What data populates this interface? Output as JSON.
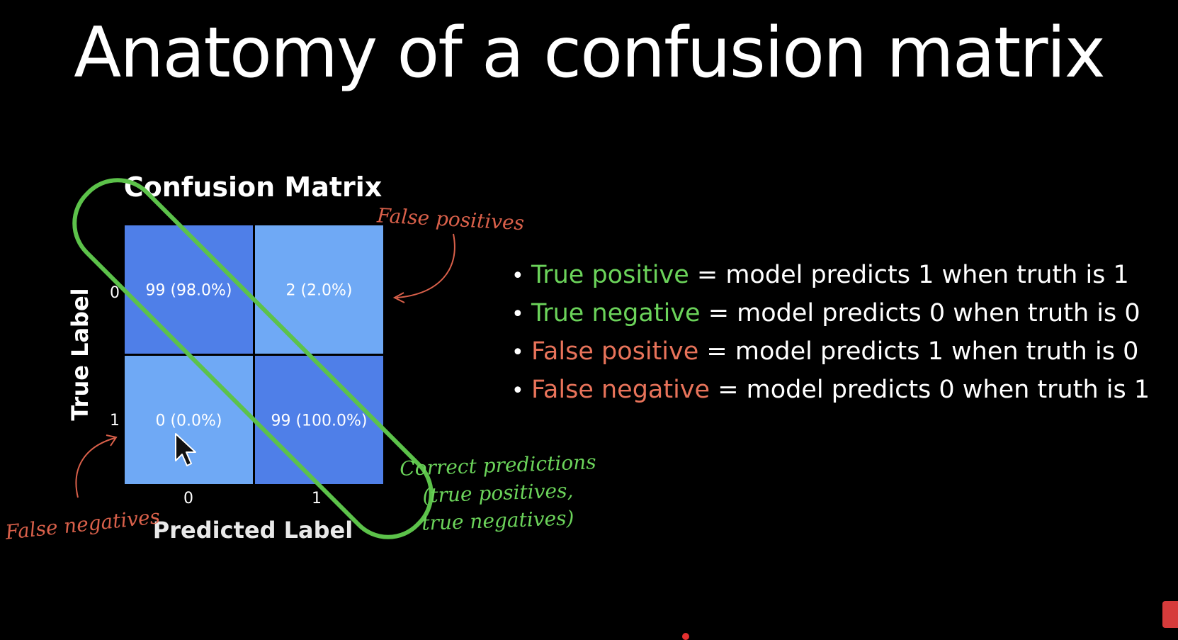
{
  "slide": {
    "title": "Anatomy of a confusion matrix"
  },
  "bullets": [
    {
      "term": "True positive",
      "rest": "= model predicts 1 when truth is 1",
      "color": "#6bd35a"
    },
    {
      "term": "True negative",
      "rest": "= model predicts 0 when truth is 0",
      "color": "#6bd35a"
    },
    {
      "term": "False positive",
      "rest": "= model predicts 1 when truth is 0",
      "color": "#e8735a"
    },
    {
      "term": "False negative",
      "rest": "= model predicts 0 when truth is 1",
      "color": "#e8735a"
    }
  ],
  "annotations": {
    "false_positives": "False positives",
    "false_negatives": "False negatives",
    "correct_line1": "Correct predictions",
    "correct_line2": "(true positives,",
    "correct_line3": "true negatives)"
  },
  "chart_data": {
    "type": "heatmap",
    "title": "Confusion Matrix",
    "xlabel": "Predicted Label",
    "ylabel": "True Label",
    "x_ticks": [
      "0",
      "1"
    ],
    "y_ticks": [
      "0",
      "1"
    ],
    "cells": [
      {
        "row": 0,
        "col": 0,
        "count": 99,
        "percent": "98.0%",
        "label": "99 (98.0%)",
        "color": "#4f7fe8"
      },
      {
        "row": 0,
        "col": 1,
        "count": 2,
        "percent": "2.0%",
        "label": "2 (2.0%)",
        "color": "#6fa9f5"
      },
      {
        "row": 1,
        "col": 0,
        "count": 0,
        "percent": "0.0%",
        "label": "0 (0.0%)",
        "color": "#6fa9f5"
      },
      {
        "row": 1,
        "col": 1,
        "count": 99,
        "percent": "100.0%",
        "label": "99 (100.0%)",
        "color": "#4f7fe8"
      }
    ],
    "highlight_color": "#5cc24a",
    "annotation_red": "#d9604a",
    "annotation_green": "#6bd35a"
  }
}
